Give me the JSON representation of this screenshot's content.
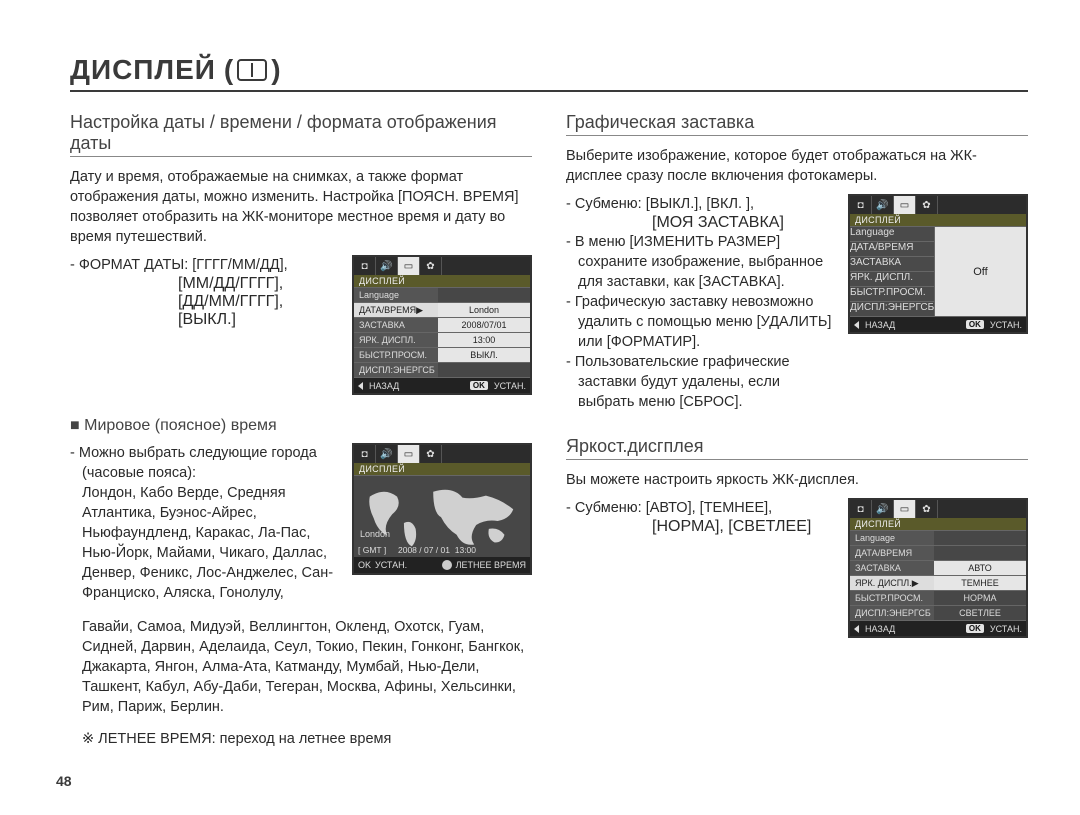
{
  "page": {
    "number": "48"
  },
  "title": {
    "text": "ДИСПЛЕЙ",
    "paren_open": "(",
    "paren_close": ")"
  },
  "left": {
    "sec1": {
      "heading": "Настройка даты / времени / формата отображения даты",
      "p1": "Дату и время, отображаемые на снимках, а также формат отображения даты, можно изменить. Настройка [ПОЯСН. ВРЕМЯ] позволяет отобразить на ЖК-мониторе местное время и дату во время путешествий.",
      "fmt_label": "- ФОРМАТ ДАТЫ: [ГГГГ/ММ/ДД],",
      "fmt_l2": "[ММ/ДД/ГГГГ],",
      "fmt_l3": "[ДД/ММ/ГГГГ],",
      "fmt_l4": "[ВЫКЛ.]",
      "lcd1": {
        "header": "ДИСПЛЕЙ",
        "rows": [
          {
            "l": "Language",
            "v": "",
            "sel": false,
            "vsel": false
          },
          {
            "l": "ДАТА/ВРЕМЯ",
            "v": "London",
            "sel": true,
            "vsel": true
          },
          {
            "l": "ЗАСТАВКА",
            "v": "2008/07/01",
            "sel": false,
            "vsel": true
          },
          {
            "l": "ЯРК. ДИСПЛ.",
            "v": "13:00",
            "sel": false,
            "vsel": true
          },
          {
            "l": "БЫСТР.ПРОСМ.",
            "v": "ВЫКЛ.",
            "sel": false,
            "vsel": true
          },
          {
            "l": "ДИСПЛ:ЭНЕРГСБ",
            "v": "",
            "sel": false,
            "vsel": false
          }
        ],
        "back": "НАЗАД",
        "ok": "OK",
        "set": "УСТАН."
      },
      "sub_heading": "Мировое (поясное) время",
      "cities_intro": "- Можно выбрать следующие города (часовые пояса):",
      "cities_p1": "Лондон, Кабо Верде, Средняя Атлантика, Буэнос-Айрес, Ньюфаундленд, Каракас, Ла-Пас, Нью-Йорк, Майами, Чикаго, Даллас, Денвер, Феникс, Лос-Анджелес, Сан-Франциско, Аляска, Гонолулу,",
      "cities_p2": "Гавайи, Самоа, Мидуэй, Веллингтон, Окленд, Охотск, Гуам, Сидней, Дарвин, Аделаида, Сеул, Токио, Пекин, Гонконг, Бангкок, Джакарта, Янгон, Алма-Ата, Катманду, Мумбай, Нью-Дели, Ташкент, Кабул, Абу-Даби, Тегеран, Москва, Афины, Хельсинки, Рим, Париж, Берлин.",
      "dst_note": "※ ЛЕТНЕЕ ВРЕМЯ: переход на летнее время",
      "lcdmap": {
        "header": "ДИСПЛЕЙ",
        "city": "London",
        "gmt": "[ GMT ]",
        "date": "2008 / 07 / 01",
        "time": "13:00",
        "ok": "OK",
        "set": "УСТАН.",
        "dst": "ЛЕТНЕЕ ВРЕМЯ"
      }
    }
  },
  "right": {
    "sec2": {
      "heading": "Графическая заставка",
      "p1": "Выберите изображение, которое будет отображаться на ЖК-дисплее сразу после включения фотокамеры.",
      "sub1": "- Субменю: [ВЫКЛ.], [ВКЛ. ],",
      "sub1b": "[МОЯ ЗАСТАВКА]",
      "b2": "- В меню [ИЗМЕНИТЬ РАЗМЕР] сохраните изображение, выбранное для заставки, как [ЗАСТАВКА].",
      "b3": "- Графическую заставку невозможно удалить с помощью меню [УДАЛИТЬ] или [ФОРМАТИР].",
      "b4": "- Пользовательские графические заставки будут удалены, если выбрать меню [СБРОС].",
      "lcd2": {
        "header": "ДИСПЛЕЙ",
        "rows": [
          {
            "l": "Language",
            "v": "",
            "sel": false,
            "vsel": false
          },
          {
            "l": "ДАТА/ВРЕМЯ",
            "v": "",
            "sel": false,
            "vsel": false
          },
          {
            "l": "ЗАСТАВКА",
            "v": "Off",
            "sel": true,
            "vsel": true,
            "big": true
          },
          {
            "l": "ЯРК. ДИСПЛ.",
            "v": "",
            "sel": false,
            "vsel": false
          },
          {
            "l": "БЫСТР.ПРОСМ.",
            "v": "",
            "sel": false,
            "vsel": false
          },
          {
            "l": "ДИСПЛ:ЭНЕРГСБ",
            "v": "",
            "sel": false,
            "vsel": false
          }
        ],
        "back": "НАЗАД",
        "ok": "OK",
        "set": "УСТАН."
      }
    },
    "sec3": {
      "heading": "Яркост.дисгплея",
      "p1": "Вы можете настроить яркость ЖК-дисплея.",
      "sub1": "- Субменю: [АВТО], [ТЕМНЕЕ],",
      "sub1b": "[НОРМА], [СВЕТЛЕЕ]",
      "lcd3": {
        "header": "ДИСПЛЕЙ",
        "rows": [
          {
            "l": "Language",
            "v": "",
            "sel": false,
            "vsel": false
          },
          {
            "l": "ДАТА/ВРЕМЯ",
            "v": "",
            "sel": false,
            "vsel": false
          },
          {
            "l": "ЗАСТАВКА",
            "v": "АВТО",
            "sel": false,
            "vsel": true
          },
          {
            "l": "ЯРК. ДИСПЛ.",
            "v": "ТЕМНЕЕ",
            "sel": true,
            "vsel": false
          },
          {
            "l": "БЫСТР.ПРОСМ.",
            "v": "НОРМА",
            "sel": false,
            "vsel": false
          },
          {
            "l": "ДИСПЛ:ЭНЕРГСБ",
            "v": "СВЕТЛЕЕ",
            "sel": false,
            "vsel": false
          }
        ],
        "back": "НАЗАД",
        "ok": "OK",
        "set": "УСТАН."
      }
    }
  },
  "colors": {
    "text": "#2a2a2a",
    "rule": "#3a3a3a",
    "lcd_bg": "#4a4a4a"
  }
}
